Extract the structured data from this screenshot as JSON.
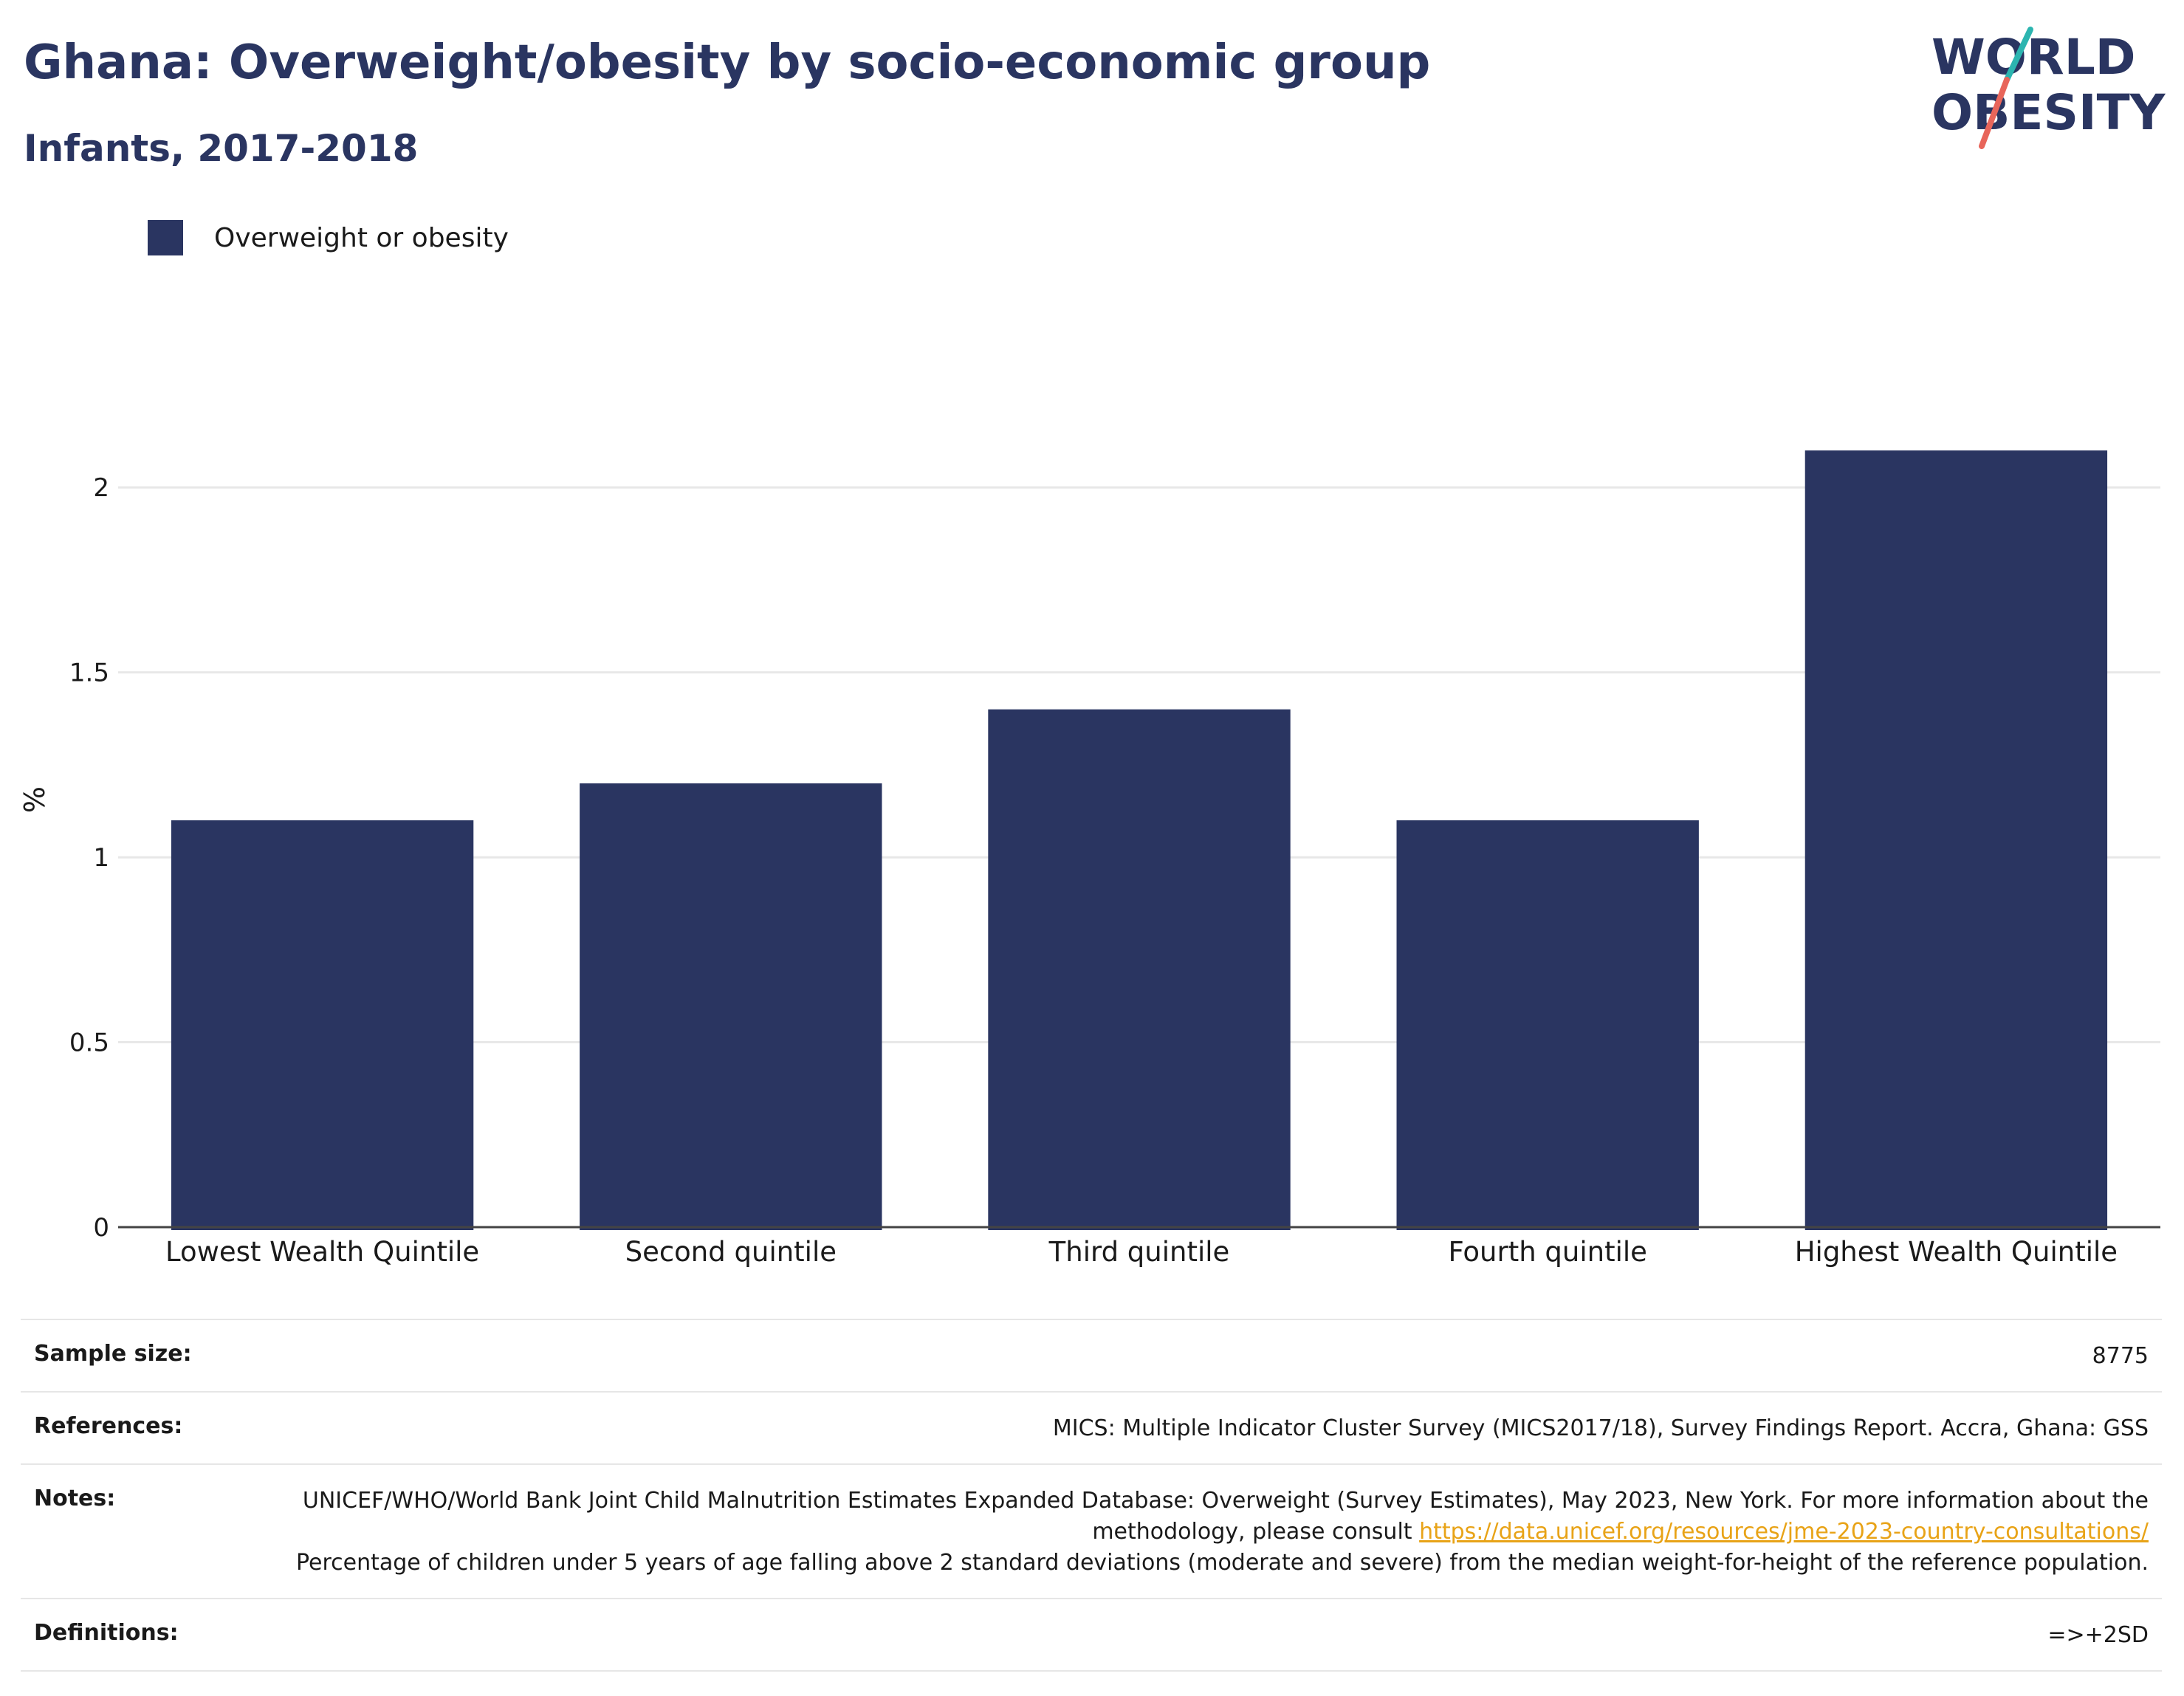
{
  "header": {
    "title": "Ghana: Overweight/obesity by socio-economic group",
    "subtitle": "Infants, 2017-2018"
  },
  "logo": {
    "line1": "WORLD",
    "line2": "OBESITY",
    "accent_colors": [
      "#2cb5b0",
      "#e8655a"
    ]
  },
  "legend": {
    "label": "Overweight or obesity",
    "color": "#2a3561"
  },
  "chart_data": {
    "type": "bar",
    "categories": [
      "Lowest Wealth Quintile",
      "Second quintile",
      "Third quintile",
      "Fourth quintile",
      "Highest Wealth Quintile"
    ],
    "series": [
      {
        "name": "Overweight or obesity",
        "values": [
          1.1,
          1.2,
          1.4,
          1.1,
          2.1
        ]
      }
    ],
    "ylabel": "%",
    "ylim": [
      0,
      2.2
    ],
    "yticks": [
      0,
      0.5,
      1,
      1.5,
      2
    ],
    "ytick_labels": [
      "0",
      "0.5",
      "1",
      "1.5",
      "2"
    ],
    "grid": true,
    "legend_position": "top-left",
    "bar_color": "#2a3561"
  },
  "info": {
    "sample_size_label": "Sample size:",
    "sample_size_value": "8775",
    "references_label": "References:",
    "references_value": "MICS: Multiple Indicator Cluster Survey (MICS2017/18), Survey Findings Report. Accra, Ghana: GSS",
    "notes_label": "Notes:",
    "notes_text_1": "UNICEF/WHO/World Bank Joint Child Malnutrition Estimates Expanded Database: Overweight (Survey Estimates), May 2023, New York. For more information about the methodology, please consult",
    "notes_link": "https://data.unicef.org/resources/jme-2023-country-consultations/",
    "notes_text_2": "Percentage of children under 5 years of age falling above 2 standard deviations (moderate and severe) from the median weight-for-height of the reference population.",
    "definitions_label": "Definitions:",
    "definitions_value": "=>+2SD"
  }
}
